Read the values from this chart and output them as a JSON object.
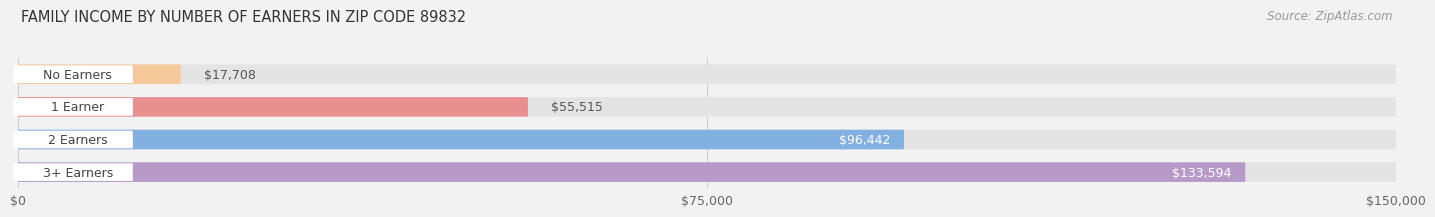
{
  "title": "FAMILY INCOME BY NUMBER OF EARNERS IN ZIP CODE 89832",
  "source": "Source: ZipAtlas.com",
  "categories": [
    "No Earners",
    "1 Earner",
    "2 Earners",
    "3+ Earners"
  ],
  "values": [
    17708,
    55515,
    96442,
    133594
  ],
  "bar_colors": [
    "#f5c89a",
    "#e89090",
    "#82b0e0",
    "#b89ac8"
  ],
  "label_colors": [
    "#555555",
    "#555555",
    "#ffffff",
    "#ffffff"
  ],
  "xlim": [
    0,
    150000
  ],
  "xticks": [
    0,
    75000,
    150000
  ],
  "xtick_labels": [
    "$0",
    "$75,000",
    "$150,000"
  ],
  "bg_color": "#f2f2f2",
  "title_fontsize": 10.5,
  "source_fontsize": 8.5,
  "label_fontsize": 9,
  "tick_fontsize": 9
}
